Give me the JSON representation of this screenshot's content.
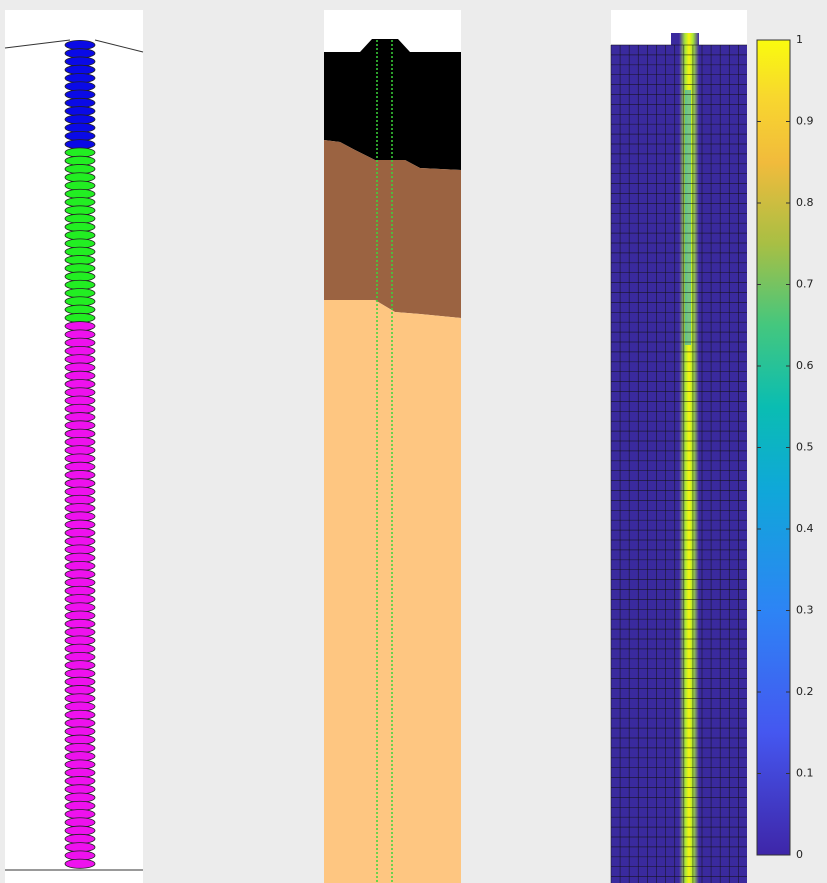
{
  "colorbar": {
    "lim": [
      0,
      1
    ],
    "ticks": [
      0,
      0.1,
      0.2,
      0.3,
      0.4,
      0.5,
      0.6,
      0.7,
      0.8,
      0.9,
      1
    ]
  }
}
